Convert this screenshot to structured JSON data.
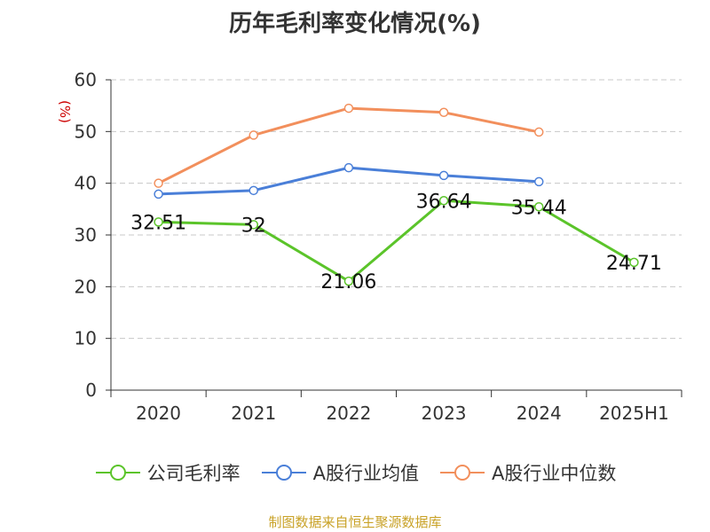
{
  "title": "历年毛利率变化情况(%)",
  "source": "制图数据来自恒生聚源数据库",
  "chart_data": {
    "type": "line",
    "title": "历年毛利率变化情况(%)",
    "ylabel": "(%)",
    "ylim": [
      0,
      60
    ],
    "yticks": [
      "0",
      "10",
      "20",
      "30",
      "40",
      "50",
      "60"
    ],
    "categories": [
      "2020",
      "2021",
      "2022",
      "2023",
      "2024",
      "2025H1"
    ],
    "grid": true,
    "legend_position": "bottom",
    "series": [
      {
        "name": "公司毛利率",
        "color": "#5bc42a",
        "values": [
          32.51,
          32,
          21.06,
          36.64,
          35.44,
          24.71
        ],
        "labels": [
          "32.51",
          "32",
          "21.06",
          "36.64",
          "35.44",
          "24.71"
        ]
      },
      {
        "name": "A股行业均值",
        "color": "#4a7fd8",
        "values": [
          37.9,
          38.6,
          43.0,
          41.5,
          40.3,
          null
        ],
        "labels": []
      },
      {
        "name": "A股行业中位数",
        "color": "#f28f5c",
        "values": [
          40.0,
          49.3,
          54.5,
          53.7,
          49.9,
          null
        ],
        "labels": []
      }
    ]
  }
}
